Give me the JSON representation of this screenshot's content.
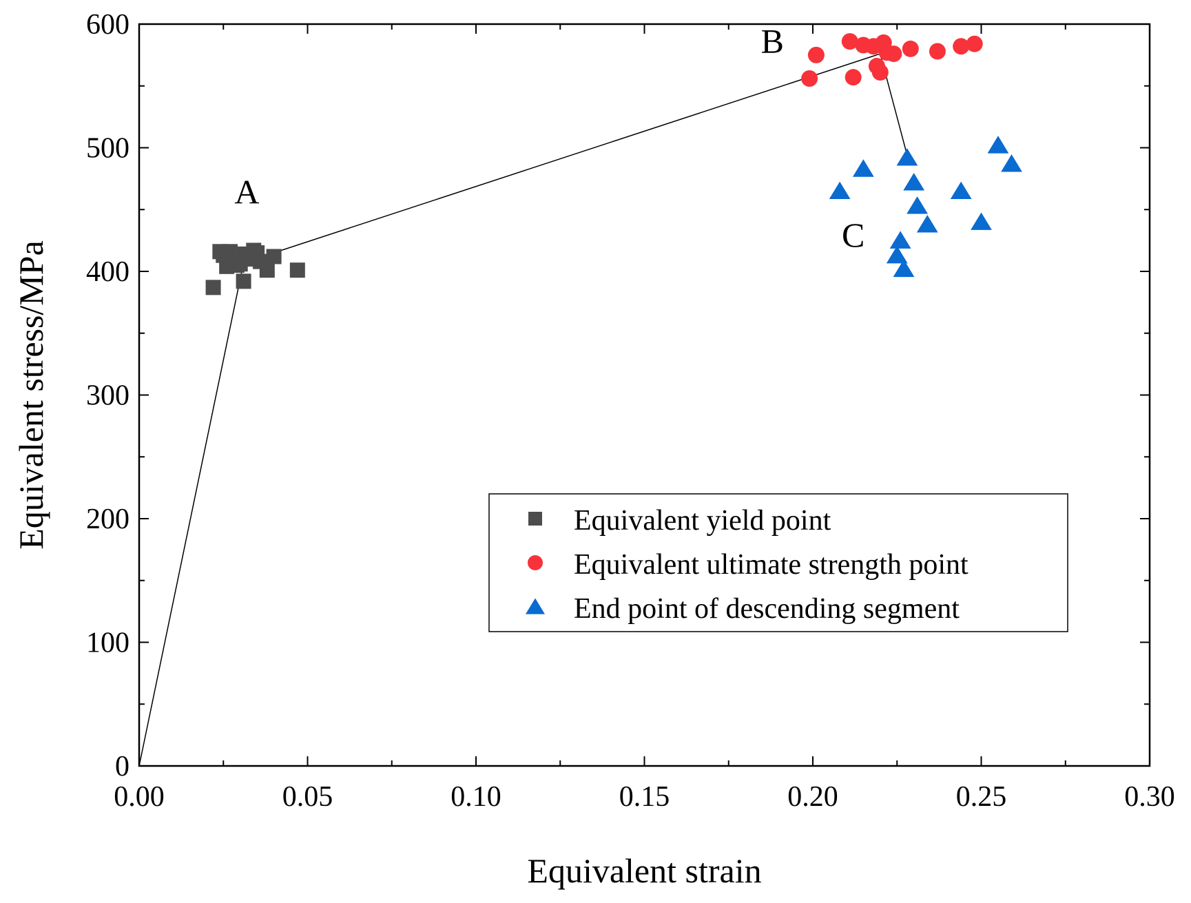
{
  "chart_data": {
    "type": "scatter",
    "xlabel": "Equivalent strain",
    "ylabel": "Equivalent stress/MPa",
    "xlim": [
      0,
      0.3
    ],
    "ylim": [
      0,
      600
    ],
    "xticks": [
      "0.00",
      "0.05",
      "0.10",
      "0.15",
      "0.20",
      "0.25",
      "0.30"
    ],
    "yticks": [
      "0",
      "100",
      "200",
      "300",
      "400",
      "500",
      "600"
    ],
    "grid": false,
    "legend_position": "bottom-right",
    "series": [
      {
        "name": "Equivalent yield point",
        "marker": "square",
        "color": "#4d4d4d",
        "x": [
          0.022,
          0.024,
          0.026,
          0.027,
          0.028,
          0.029,
          0.03,
          0.031,
          0.032,
          0.033,
          0.034,
          0.035,
          0.036,
          0.038,
          0.04,
          0.047,
          0.025,
          0.03
        ],
        "y": [
          387,
          416,
          404,
          416,
          410,
          405,
          414,
          392,
          410,
          413,
          417,
          415,
          408,
          401,
          412,
          401,
          413,
          406
        ]
      },
      {
        "name": "Equivalent ultimate strength point",
        "marker": "circle",
        "color": "#f8323a",
        "x": [
          0.199,
          0.201,
          0.211,
          0.212,
          0.215,
          0.218,
          0.219,
          0.22,
          0.221,
          0.222,
          0.224,
          0.229,
          0.237,
          0.244,
          0.248
        ],
        "y": [
          556,
          575,
          586,
          557,
          583,
          582,
          566,
          561,
          585,
          577,
          576,
          580,
          578,
          582,
          584
        ]
      },
      {
        "name": "End point of descending segment",
        "marker": "triangle",
        "color": "#0a6bd0",
        "x": [
          0.208,
          0.215,
          0.225,
          0.226,
          0.227,
          0.228,
          0.23,
          0.231,
          0.234,
          0.244,
          0.25,
          0.255,
          0.259
        ],
        "y": [
          465,
          483,
          413,
          425,
          402,
          492,
          472,
          453,
          438,
          465,
          440,
          502,
          487
        ]
      }
    ],
    "line": {
      "x": [
        0.0,
        0.031,
        0.22,
        0.228
      ],
      "y": [
        0,
        407,
        576,
        494
      ]
    },
    "annotations": [
      {
        "text": "A",
        "x": 0.032,
        "y": 455
      },
      {
        "text": "B",
        "x": 0.188,
        "y": 577
      },
      {
        "text": "C",
        "x": 0.212,
        "y": 420
      }
    ]
  }
}
